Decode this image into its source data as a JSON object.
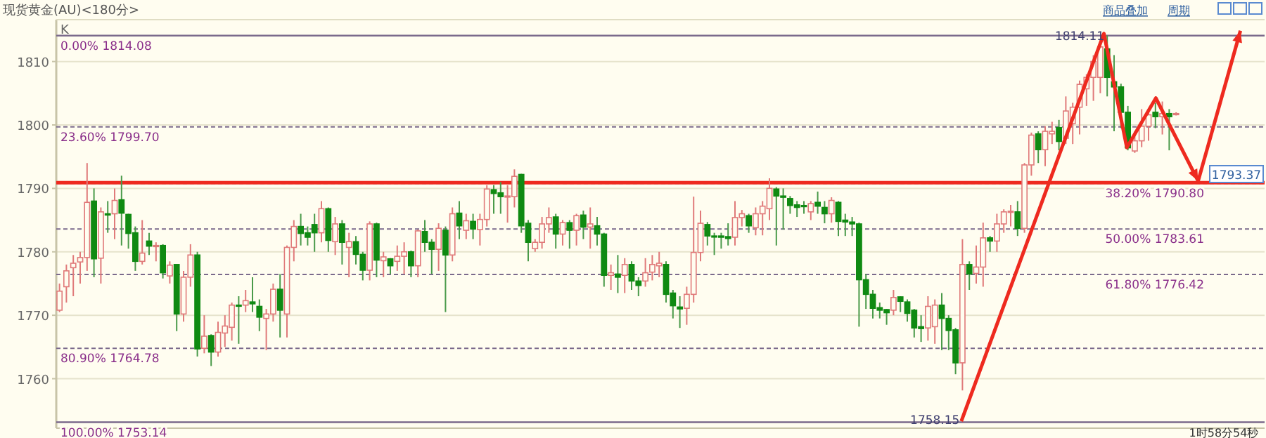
{
  "chart_data": {
    "type": "candlestick",
    "title": "现货黄金(AU)<180分>",
    "categories": [
      null,
      null,
      null,
      null,
      null,
      null,
      null,
      null,
      null,
      null,
      null,
      null,
      null,
      null,
      null,
      null,
      null,
      null,
      null,
      null,
      null,
      null,
      null,
      null,
      null,
      null,
      null,
      null,
      null,
      null,
      null,
      null,
      null,
      null,
      null,
      null,
      null,
      null,
      null,
      null,
      null,
      null,
      null,
      null,
      null,
      null,
      null,
      null,
      null,
      null,
      null,
      null,
      null,
      null,
      null,
      null,
      null,
      null,
      null,
      null,
      null,
      null,
      null,
      null,
      null,
      null,
      null,
      null,
      null,
      null,
      null,
      null,
      null,
      null,
      null,
      null,
      null,
      null,
      null,
      null,
      null,
      null,
      null,
      null,
      null,
      null,
      null,
      null,
      null,
      null,
      null,
      null,
      null,
      null,
      null,
      null,
      null,
      null,
      null,
      null,
      null,
      null,
      null,
      null,
      null,
      null,
      null,
      null,
      null,
      null,
      null,
      null,
      null,
      null,
      null,
      null,
      null,
      null,
      null,
      null,
      null,
      null,
      null,
      null,
      null,
      null,
      null,
      null,
      null,
      null,
      null,
      null,
      null,
      null,
      null,
      null,
      null,
      null,
      null,
      null,
      null,
      null,
      null,
      null,
      null,
      null,
      null,
      null,
      null,
      null,
      null,
      null,
      null,
      null,
      null,
      null,
      null,
      null,
      null,
      null,
      null,
      null,
      null
    ],
    "ohlc": [
      [
        1770.8,
        1775,
        1770.5,
        1773.8
      ],
      [
        1774.5,
        1778,
        1772,
        1777
      ],
      [
        1777.5,
        1779.5,
        1773,
        1778.2
      ],
      [
        1778.4,
        1780,
        1775,
        1779.1
      ],
      [
        1779.1,
        1794,
        1777,
        1787.8
      ],
      [
        1788,
        1790,
        1776,
        1778.9
      ],
      [
        1779,
        1787,
        1775,
        1786.3
      ],
      [
        1786,
        1788,
        1783,
        1785.8
      ],
      [
        1786,
        1790,
        1782,
        1788.1
      ],
      [
        1788.2,
        1792,
        1781,
        1786.1
      ],
      [
        1785.9,
        1786,
        1780.5,
        1782.9
      ],
      [
        1783,
        1784,
        1777,
        1778.5
      ],
      [
        1778.5,
        1785,
        1778,
        1779.8
      ],
      [
        1781.7,
        1783,
        1779.5,
        1780.9
      ],
      [
        1780.9,
        1781.5,
        1778.5,
        1781
      ],
      [
        1781,
        1781.2,
        1775.8,
        1776.7
      ],
      [
        1776.2,
        1778.5,
        1775,
        1777.9
      ],
      [
        1778,
        1778,
        1767.5,
        1770.2
      ],
      [
        1770.2,
        1777,
        1769,
        1776
      ],
      [
        1776,
        1781.2,
        1774.5,
        1779.5
      ],
      [
        1779.5,
        1780,
        1763.5,
        1764.7
      ],
      [
        1764.8,
        1770,
        1764,
        1766.7
      ],
      [
        1766.8,
        1767,
        1762,
        1764.2
      ],
      [
        1764.2,
        1769,
        1763.5,
        1767.3
      ],
      [
        1767.2,
        1770,
        1765,
        1768.3
      ],
      [
        1768.1,
        1772,
        1766,
        1771.6
      ],
      [
        1771.6,
        1773,
        1765.5,
        1771.5
      ],
      [
        1771.6,
        1774,
        1770.5,
        1772.3
      ],
      [
        1772.1,
        1776,
        1770.5,
        1771.8
      ],
      [
        1771.4,
        1772.5,
        1767.5,
        1769.7
      ],
      [
        1769.5,
        1771,
        1764.5,
        1770.2
      ],
      [
        1770.2,
        1775,
        1769,
        1774.1
      ],
      [
        1774.1,
        1776.5,
        1766.5,
        1770.8
      ],
      [
        1770.2,
        1781,
        1766.5,
        1780.7
      ],
      [
        1780.7,
        1785,
        1778.5,
        1784
      ],
      [
        1784,
        1786,
        1781,
        1782.9
      ],
      [
        1783,
        1784,
        1781,
        1782.3
      ],
      [
        1784.3,
        1786,
        1780,
        1783
      ],
      [
        1783,
        1788,
        1781.5,
        1786.8
      ],
      [
        1786.8,
        1787,
        1780,
        1781.8
      ],
      [
        1781.6,
        1785.5,
        1779.5,
        1784.4
      ],
      [
        1784.4,
        1785,
        1778,
        1781.5
      ],
      [
        1780.7,
        1783,
        1776,
        1781.6
      ],
      [
        1781.6,
        1782.5,
        1778,
        1779.6
      ],
      [
        1779.6,
        1780,
        1775.5,
        1777.1
      ],
      [
        1777.1,
        1784.8,
        1775.5,
        1784.4
      ],
      [
        1784.4,
        1784.6,
        1776,
        1778.7
      ],
      [
        1778.6,
        1780,
        1776,
        1779.2
      ],
      [
        1778.9,
        1779,
        1776.5,
        1777.8
      ],
      [
        1778.5,
        1781,
        1777,
        1779.3
      ],
      [
        1779.3,
        1781.5,
        1776.5,
        1780
      ],
      [
        1780,
        1780.2,
        1776,
        1777.8
      ],
      [
        1777.8,
        1783.5,
        1776,
        1783.3
      ],
      [
        1783.2,
        1785,
        1780,
        1781.5
      ],
      [
        1781.5,
        1782,
        1776.5,
        1780.4
      ],
      [
        1780.4,
        1784.5,
        1777,
        1783.7
      ],
      [
        1783.4,
        1784,
        1770.5,
        1779.5
      ],
      [
        1779.5,
        1787,
        1778.5,
        1786
      ],
      [
        1786.1,
        1788,
        1782,
        1784.1
      ],
      [
        1783.4,
        1786,
        1782,
        1784.9
      ],
      [
        1784.8,
        1786,
        1782,
        1783.6
      ],
      [
        1783.5,
        1786,
        1781,
        1785.1
      ],
      [
        1785.1,
        1790.5,
        1784,
        1789.9
      ],
      [
        1789.8,
        1790.5,
        1786,
        1789.2
      ],
      [
        1789.3,
        1791,
        1786,
        1788.7
      ],
      [
        1788.7,
        1790.5,
        1784.6,
        1788.8
      ],
      [
        1788.7,
        1793,
        1787,
        1791.9
      ],
      [
        1792.2,
        1792.3,
        1783,
        1784.1
      ],
      [
        1784.5,
        1785,
        1778.5,
        1781.5
      ],
      [
        1780.5,
        1782,
        1780,
        1781.5
      ],
      [
        1781.5,
        1785.5,
        1780.5,
        1784.4
      ],
      [
        1784.4,
        1787,
        1783,
        1785.4
      ],
      [
        1785.5,
        1786,
        1780.5,
        1782.8
      ],
      [
        1782.8,
        1785,
        1781,
        1784.6
      ],
      [
        1784.6,
        1785,
        1780.5,
        1783.4
      ],
      [
        1783.4,
        1786,
        1781,
        1785.7
      ],
      [
        1785.8,
        1786.5,
        1782,
        1783.9
      ],
      [
        1783.9,
        1787,
        1780.5,
        1784.4
      ],
      [
        1784.1,
        1785.5,
        1781,
        1782.8
      ],
      [
        1782.8,
        1783,
        1774.5,
        1776.3
      ],
      [
        1776.3,
        1778,
        1774,
        1776.7
      ],
      [
        1776.5,
        1779.5,
        1773.5,
        1776
      ],
      [
        1776.3,
        1779,
        1773.5,
        1778
      ],
      [
        1778,
        1778.5,
        1774,
        1775.4
      ],
      [
        1775.4,
        1776,
        1773,
        1774.7
      ],
      [
        1775.4,
        1779,
        1774.5,
        1776.7
      ],
      [
        1776.8,
        1779.5,
        1775.5,
        1778
      ],
      [
        1777.8,
        1780,
        1776,
        1778.2
      ],
      [
        1778,
        1778.5,
        1772,
        1773.3
      ],
      [
        1773.5,
        1774,
        1769.5,
        1771.5
      ],
      [
        1771.3,
        1773,
        1768,
        1771
      ],
      [
        1771.1,
        1774.5,
        1768.5,
        1773.3
      ],
      [
        1773.3,
        1788.7,
        1772,
        1779.9
      ],
      [
        1779.9,
        1786.5,
        1778.5,
        1784.5
      ],
      [
        1784.3,
        1784.7,
        1781,
        1782.5
      ],
      [
        1782.5,
        1783,
        1779.5,
        1782.4
      ],
      [
        1782.5,
        1783,
        1780.5,
        1782.3
      ],
      [
        1782.4,
        1784.5,
        1781,
        1782.1
      ],
      [
        1782.3,
        1788,
        1781,
        1785.4
      ],
      [
        1785.4,
        1786.6,
        1784,
        1786
      ],
      [
        1785.7,
        1786,
        1783,
        1784.1
      ],
      [
        1783.8,
        1787,
        1782.6,
        1786
      ],
      [
        1786,
        1788,
        1782.6,
        1787.2
      ],
      [
        1786.8,
        1791.6,
        1785,
        1790
      ],
      [
        1789.9,
        1790.2,
        1781,
        1788.8
      ],
      [
        1788.8,
        1790,
        1783.5,
        1788.6
      ],
      [
        1788.4,
        1788.8,
        1786,
        1787.3
      ],
      [
        1787.4,
        1788,
        1785.5,
        1787
      ],
      [
        1787.3,
        1788,
        1786,
        1787.2
      ],
      [
        1786.3,
        1788,
        1785,
        1787.6
      ],
      [
        1787.8,
        1789.5,
        1786,
        1787.2
      ],
      [
        1787,
        1788,
        1784.5,
        1786
      ],
      [
        1786,
        1788.6,
        1784.6,
        1788.1
      ],
      [
        1787.8,
        1788,
        1782.5,
        1784.8
      ],
      [
        1785,
        1786,
        1782.5,
        1784.7
      ],
      [
        1784.7,
        1785.5,
        1782.5,
        1784.4
      ],
      [
        1784.4,
        1784.6,
        1768.2,
        1775.6
      ],
      [
        1775.6,
        1776.5,
        1771,
        1773.3
      ],
      [
        1773.3,
        1774,
        1769.5,
        1771.1
      ],
      [
        1771.2,
        1772,
        1769.5,
        1770.8
      ],
      [
        1770.9,
        1771,
        1768.5,
        1770.4
      ],
      [
        1770.8,
        1774,
        1770,
        1772.8
      ],
      [
        1772.9,
        1773,
        1770.5,
        1772.2
      ],
      [
        1772.1,
        1772.5,
        1769,
        1770.3
      ],
      [
        1770.8,
        1771,
        1766.5,
        1768
      ],
      [
        1768.2,
        1770,
        1765.8,
        1767.9
      ],
      [
        1768,
        1773,
        1766,
        1771.4
      ],
      [
        1768.2,
        1772.5,
        1765.5,
        1771.6
      ],
      [
        1771.6,
        1773.5,
        1764.5,
        1769.5
      ],
      [
        1769.5,
        1770,
        1764.5,
        1767.6
      ],
      [
        1767.7,
        1768,
        1760.7,
        1762.5
      ],
      [
        1762.5,
        1782,
        1758.15,
        1778
      ],
      [
        1778,
        1778.5,
        1774,
        1776.5
      ],
      [
        1776.6,
        1781,
        1775,
        1777.6
      ],
      [
        1777.6,
        1784.6,
        1774.5,
        1782.2
      ],
      [
        1782.2,
        1782.5,
        1780,
        1781.7
      ],
      [
        1781.7,
        1786,
        1780,
        1784.4
      ],
      [
        1784.4,
        1786.7,
        1783,
        1786.3
      ],
      [
        1786.3,
        1787.4,
        1784,
        1786.4
      ],
      [
        1786.3,
        1788,
        1782.5,
        1783.7
      ],
      [
        1783.7,
        1794,
        1783,
        1793.7
      ],
      [
        1793.7,
        1798.8,
        1792,
        1798.4
      ],
      [
        1798.6,
        1799,
        1794,
        1796.1
      ],
      [
        1796.1,
        1799.8,
        1793.5,
        1799
      ],
      [
        1798.6,
        1800.5,
        1797,
        1799
      ],
      [
        1799.6,
        1800.8,
        1796,
        1797.4
      ],
      [
        1797.9,
        1804.5,
        1797,
        1802.2
      ],
      [
        1800.2,
        1803.5,
        1797,
        1802.8
      ],
      [
        1802.8,
        1807,
        1798.5,
        1806.4
      ],
      [
        1805.7,
        1808,
        1803,
        1807.5
      ],
      [
        1807.5,
        1811,
        1803.8,
        1810
      ],
      [
        1807.5,
        1812.8,
        1805,
        1812.3
      ],
      [
        1812,
        1814.11,
        1804.5,
        1807.5
      ],
      [
        1806.8,
        1811,
        1799,
        1806
      ],
      [
        1806,
        1806.5,
        1799.5,
        1802
      ],
      [
        1802,
        1803,
        1796,
        1796.4
      ],
      [
        1795.9,
        1799,
        1795.6,
        1797.5
      ],
      [
        1797.5,
        1802.5,
        1796.5,
        1799.8
      ],
      [
        1799.8,
        1802,
        1797.5,
        1801.6
      ],
      [
        1802,
        1803.5,
        1799.5,
        1801.3
      ],
      [
        1801.3,
        1803.7,
        1798.5,
        1801.8
      ],
      [
        1801.8,
        1802.5,
        1796,
        1801.3
      ],
      [
        1801.7,
        1802,
        1801.5,
        1801.8
      ]
    ],
    "ylim": [
      1752.2,
      1816.6
    ],
    "yticks": [
      1760,
      1770,
      1780,
      1790,
      1800,
      1810
    ],
    "grid": "y",
    "tick_labels": "y",
    "ref_lines": [
      {
        "axis": "y",
        "value": 1814.08,
        "label": "0.00% 1814.08",
        "color": "#7b6a8c",
        "line_style": "solid"
      },
      {
        "axis": "y",
        "value": 1799.7,
        "label": "23.60% 1799.70",
        "color": "#7b6a8c",
        "line_style": "dashed"
      },
      {
        "axis": "y",
        "value": 1790.8,
        "label": "38.20% 1790.80",
        "color": "#7b6a8c",
        "line_style": "dashed"
      },
      {
        "axis": "y",
        "value": 1783.61,
        "label": "50.00% 1783.61",
        "color": "#7b6a8c",
        "line_style": "dashed"
      },
      {
        "axis": "y",
        "value": 1776.42,
        "label": "61.80% 1776.42",
        "color": "#7b6a8c",
        "line_style": "dashed"
      },
      {
        "axis": "y",
        "value": 1764.78,
        "label": "80.90% 1764.78",
        "color": "#7b6a8c",
        "line_style": "dashed"
      },
      {
        "axis": "y",
        "value": 1753.14,
        "label": "100.00% 1753.14",
        "color": "#7b6a8c",
        "line_style": "solid"
      },
      {
        "axis": "y",
        "value": 1790.9,
        "color": "#ee2a1f",
        "line_style": "solid"
      }
    ],
    "annotations": [
      "K",
      "商品叠加",
      "周期",
      "1时58分54秒",
      {
        "text": "1814.11",
        "y": 1814.11
      },
      "1758.15",
      "1793.37"
    ]
  }
}
